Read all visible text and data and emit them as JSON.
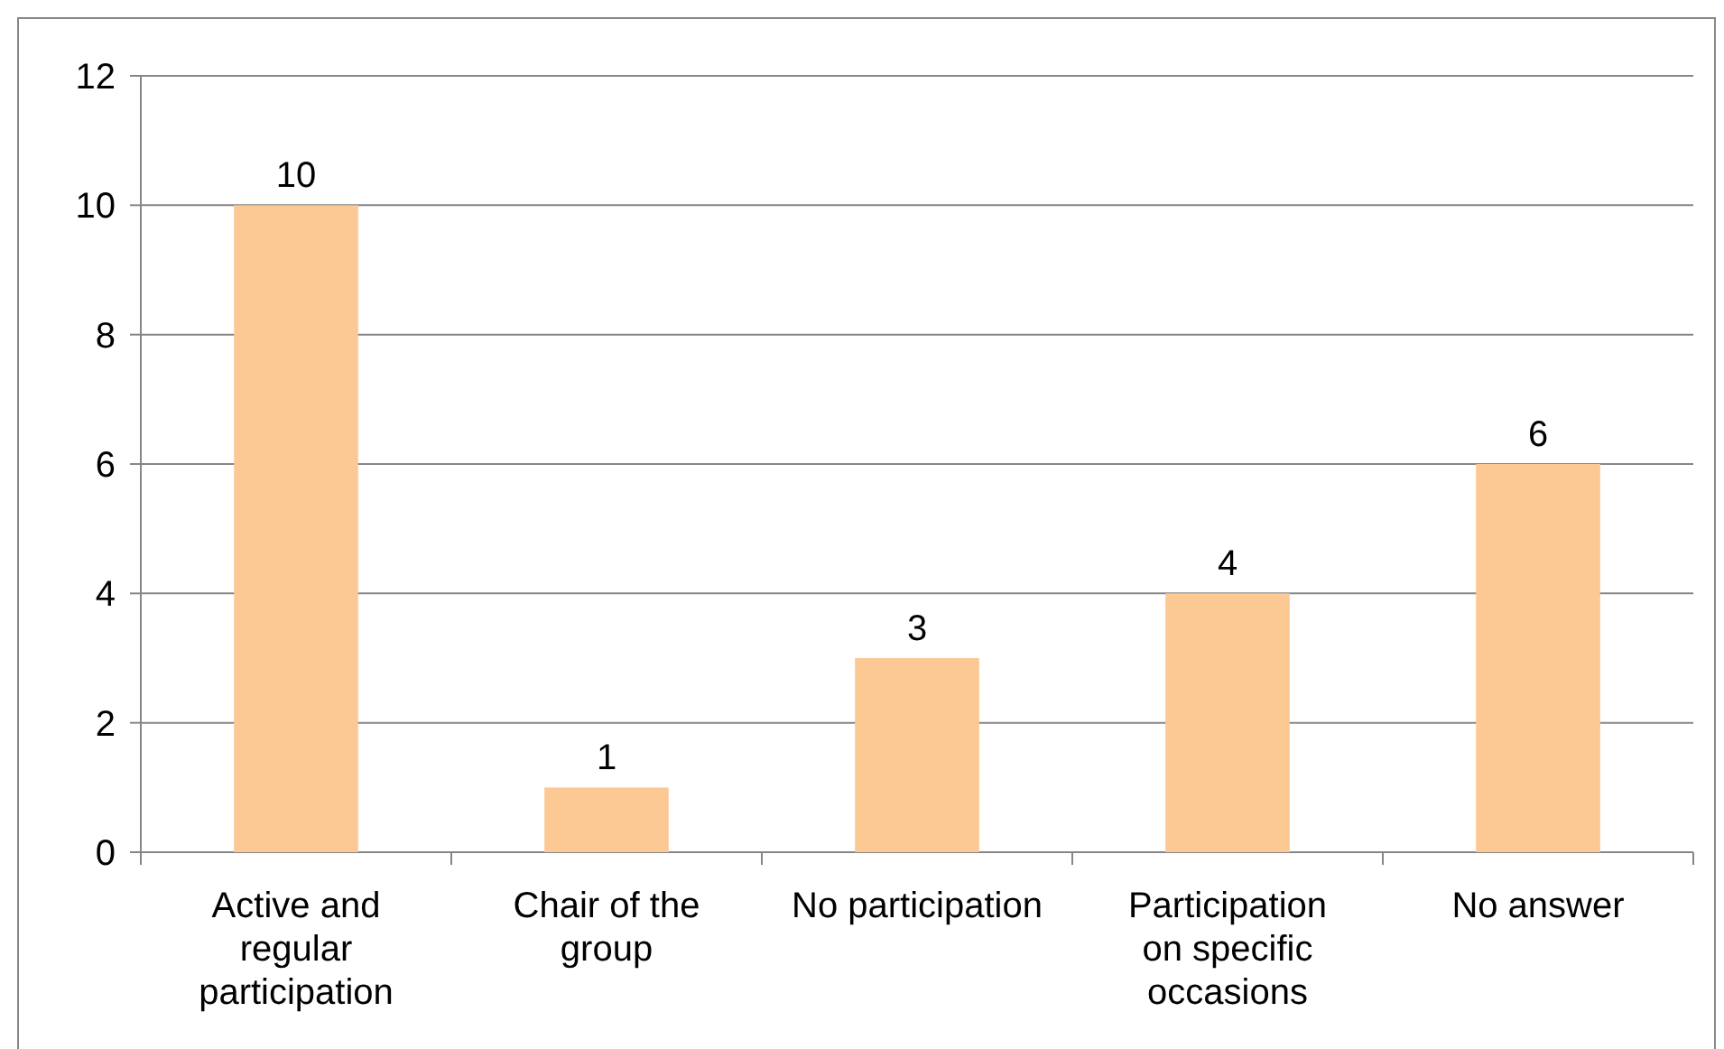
{
  "chart_data": {
    "type": "bar",
    "categories": [
      "Active and regular participation",
      "Chair of the group",
      "No participation",
      "Participation on specific occasions",
      "No answer"
    ],
    "values": [
      10,
      1,
      3,
      4,
      6
    ],
    "color": "#fcc994",
    "ylim": [
      0,
      12
    ],
    "yticks": [
      0,
      2,
      4,
      6,
      8,
      10,
      12
    ],
    "grid": "y",
    "data_labels": true
  }
}
